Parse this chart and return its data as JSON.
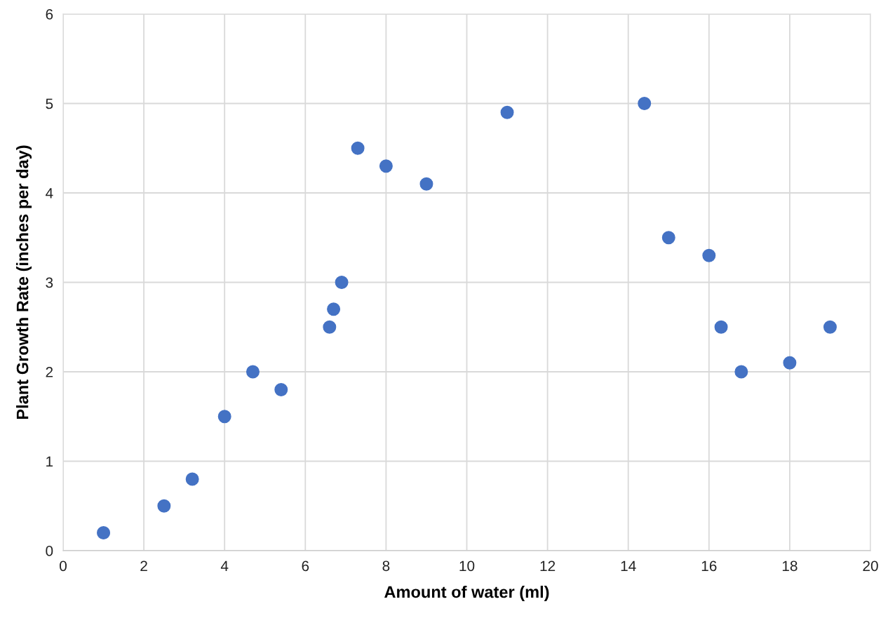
{
  "chart_data": {
    "type": "scatter",
    "xlabel": "Amount of water (ml)",
    "ylabel": "Plant Growth Rate (inches per day)",
    "x": [
      1,
      2.5,
      3.2,
      4.0,
      4.7,
      5.4,
      6.6,
      6.7,
      6.9,
      7.3,
      8.0,
      9.0,
      11.0,
      14.4,
      15.0,
      16.0,
      16.3,
      16.8,
      18.0,
      19.0
    ],
    "series": [
      {
        "color": "#4472c4",
        "values": [
          0.2,
          0.5,
          0.8,
          1.5,
          2.0,
          1.8,
          2.5,
          2.7,
          3.0,
          4.5,
          4.3,
          4.1,
          4.9,
          5.0,
          3.5,
          3.3,
          2.5,
          2.0,
          2.1,
          2.5
        ]
      }
    ],
    "xlim": [
      0,
      20
    ],
    "xticks": [
      0,
      2,
      4,
      6,
      8,
      10,
      12,
      14,
      16,
      18,
      20
    ],
    "ylim": [
      0,
      6
    ],
    "yticks": [
      0,
      1,
      2,
      3,
      4,
      5,
      6
    ],
    "grid": true,
    "marker": "circle"
  }
}
